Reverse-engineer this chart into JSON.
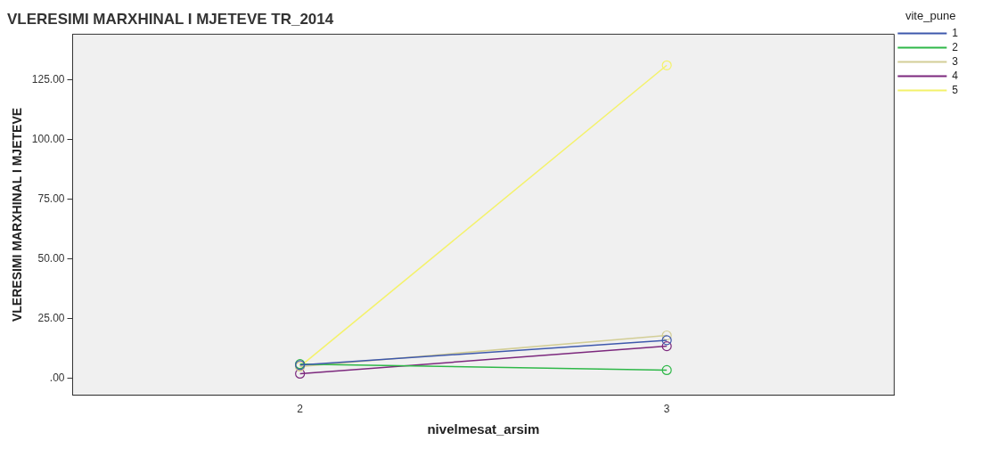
{
  "chart_data": {
    "type": "line",
    "title": "VLERESIMI MARXHINAL I MJETEVE TR_2014",
    "xlabel": "nivelmesat_arsim",
    "ylabel": "VLERESIMI MARXHINAL I MJETEVE",
    "legend_title": "vite_pune",
    "x": [
      2,
      3
    ],
    "xlim": [
      1.38,
      3.62
    ],
    "xticks": [
      2,
      3
    ],
    "ylim": [
      -7,
      144
    ],
    "yticks": [
      {
        "value": 0,
        "label": ".00"
      },
      {
        "value": 25,
        "label": "25.00"
      },
      {
        "value": 50,
        "label": "50.00"
      },
      {
        "value": 75,
        "label": "75.00"
      },
      {
        "value": 100,
        "label": "100.00"
      },
      {
        "value": 125,
        "label": "125.00"
      }
    ],
    "series": [
      {
        "name": "1",
        "color": "#3e58ac",
        "values": [
          5.6,
          16
        ]
      },
      {
        "name": "2",
        "color": "#2eb848",
        "values": [
          6,
          3.5
        ]
      },
      {
        "name": "3",
        "color": "#d3ce97",
        "values": [
          5,
          18
        ]
      },
      {
        "name": "4",
        "color": "#7c287d",
        "values": [
          2,
          13.5
        ]
      },
      {
        "name": "5",
        "color": "#f4f26a",
        "values": [
          5,
          131
        ]
      }
    ],
    "grid": false,
    "legend": "right",
    "marker": "circle",
    "line_style": "solid"
  }
}
